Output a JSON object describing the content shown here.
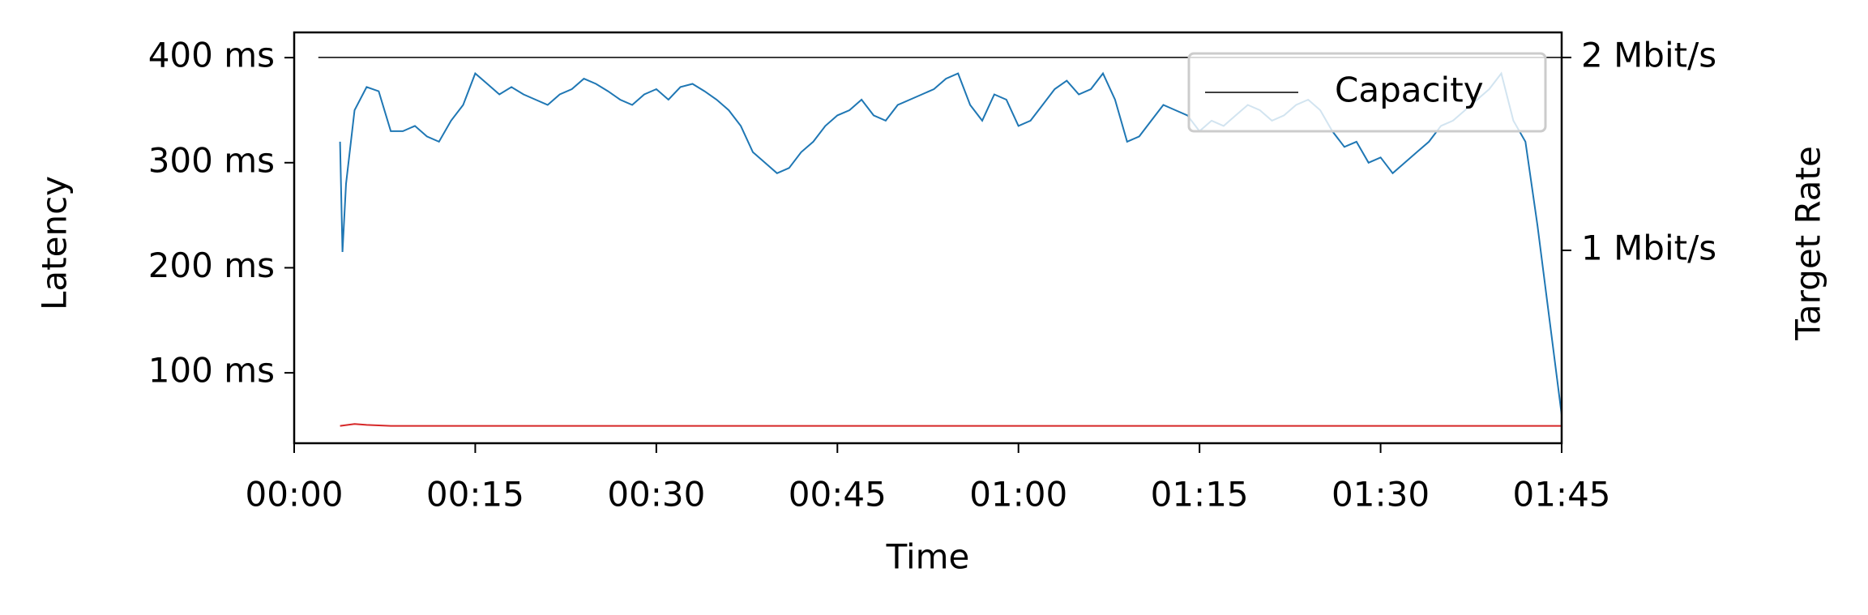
{
  "chart_data": {
    "type": "line",
    "xlabel": "Time",
    "ylabel": "Latency",
    "y2label": "Target Rate",
    "xlim": [
      0,
      105
    ],
    "ylim": [
      33,
      424
    ],
    "y2lim": [
      0,
      2.13
    ],
    "xticks": [
      {
        "value": 0,
        "label": "00:00"
      },
      {
        "value": 15,
        "label": "00:15"
      },
      {
        "value": 30,
        "label": "00:30"
      },
      {
        "value": 45,
        "label": "00:45"
      },
      {
        "value": 60,
        "label": "01:00"
      },
      {
        "value": 75,
        "label": "01:15"
      },
      {
        "value": 90,
        "label": "01:30"
      },
      {
        "value": 105,
        "label": "01:45"
      }
    ],
    "yticks": [
      {
        "value": 100,
        "label": "100 ms"
      },
      {
        "value": 200,
        "label": "200 ms"
      },
      {
        "value": 300,
        "label": "300 ms"
      },
      {
        "value": 400,
        "label": "400 ms"
      }
    ],
    "y2ticks": [
      {
        "value": 1,
        "label": "1 Mbit/s"
      },
      {
        "value": 2,
        "label": "2 Mbit/s"
      }
    ],
    "legend": "upper right",
    "series": [
      {
        "color": "#1f77b4",
        "x": [
          3.8,
          4.0,
          4.3,
          5,
          6,
          7,
          8,
          9,
          10,
          11,
          12,
          13,
          14,
          15,
          16,
          17,
          18,
          19,
          20,
          21,
          22,
          23,
          24,
          25,
          26,
          27,
          28,
          29,
          30,
          31,
          32,
          33,
          34,
          35,
          36,
          37,
          38,
          39,
          40,
          41,
          42,
          43,
          44,
          45,
          46,
          47,
          48,
          49,
          50,
          51,
          52,
          53,
          54,
          55,
          56,
          57,
          58,
          59,
          60,
          61,
          62,
          63,
          64,
          65,
          66,
          67,
          68,
          69,
          70,
          71,
          72,
          73,
          74,
          75,
          76,
          77,
          78,
          79,
          80,
          81,
          82,
          83,
          84,
          85,
          86,
          87,
          88,
          89,
          90,
          91,
          92,
          93,
          94,
          95,
          96,
          97,
          98,
          99,
          100,
          101,
          102,
          103,
          104,
          105
        ],
        "values": [
          320,
          215,
          280,
          350,
          372,
          368,
          330,
          330,
          335,
          325,
          320,
          340,
          355,
          385,
          375,
          365,
          372,
          365,
          360,
          355,
          365,
          370,
          380,
          375,
          368,
          360,
          355,
          365,
          370,
          360,
          372,
          375,
          368,
          360,
          350,
          335,
          310,
          300,
          290,
          295,
          310,
          320,
          335,
          345,
          350,
          360,
          345,
          340,
          355,
          360,
          365,
          370,
          380,
          385,
          355,
          340,
          365,
          360,
          335,
          340,
          355,
          370,
          378,
          365,
          370,
          385,
          360,
          320,
          325,
          340,
          355,
          350,
          345,
          330,
          340,
          335,
          345,
          355,
          350,
          340,
          345,
          355,
          360,
          350,
          330,
          315,
          320,
          300,
          305,
          290,
          300,
          310,
          320,
          335,
          340,
          350,
          360,
          370,
          385,
          340,
          320,
          240,
          150,
          60
        ]
      },
      {
        "color": "#d62728",
        "axis": "y2",
        "x": [
          3.8,
          5,
          6,
          8,
          105
        ],
        "values": [
          0.09,
          0.1,
          0.095,
          0.09,
          0.09
        ]
      },
      {
        "name": "Capacity",
        "color": "#000000",
        "axis": "y2",
        "x": [
          2,
          105
        ],
        "values": [
          2,
          2
        ]
      }
    ]
  }
}
